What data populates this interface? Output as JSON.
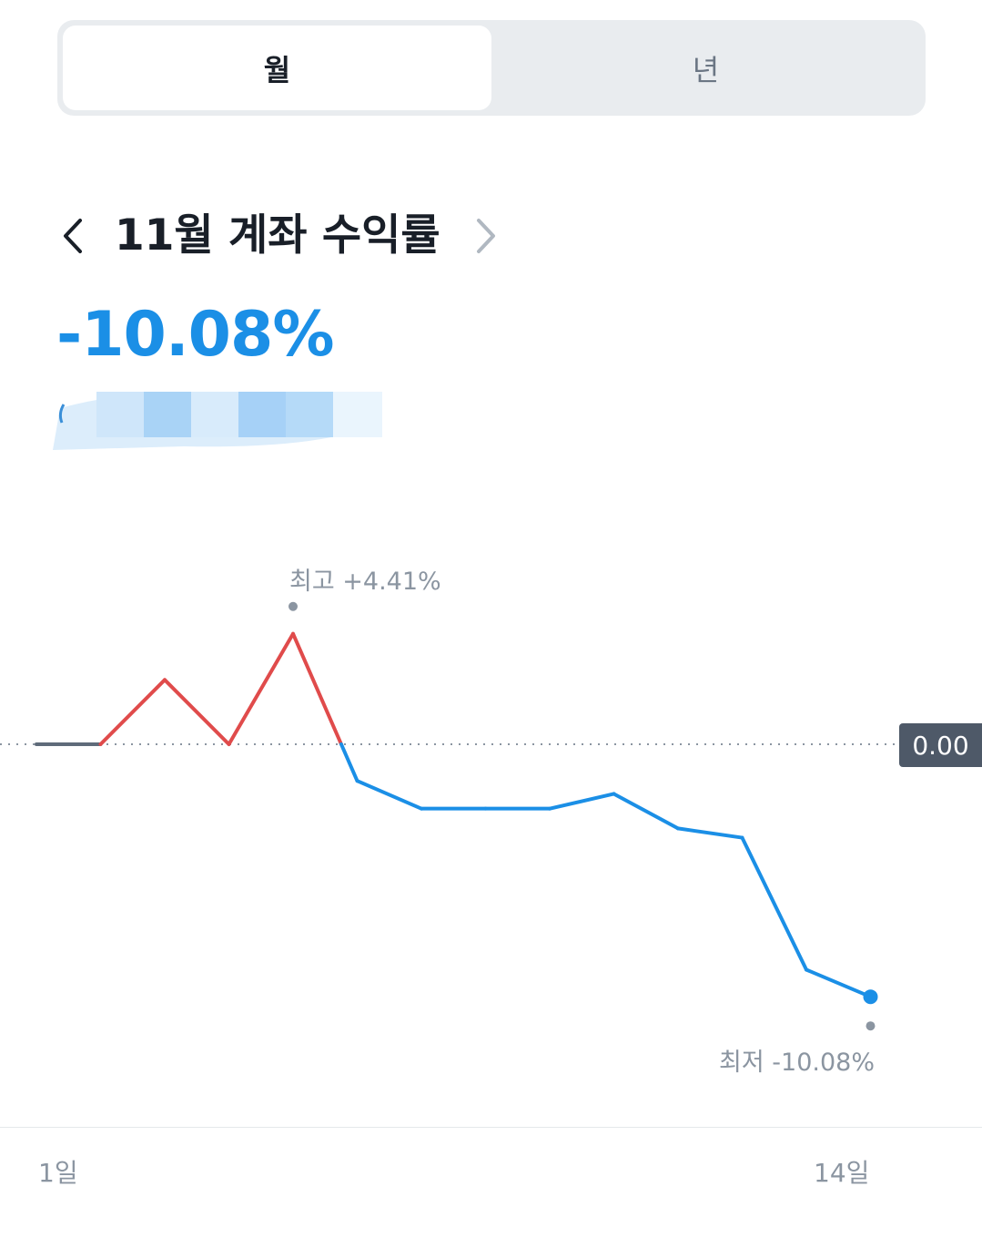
{
  "segment": {
    "options": [
      "월",
      "년"
    ],
    "selected": "월"
  },
  "header": {
    "title": "11월 계좌 수익률",
    "prev_icon": "chevron-left-icon",
    "next_icon": "chevron-right-icon"
  },
  "summary": {
    "return_rate": "-10.08%"
  },
  "chart": {
    "peak_label": "최고 +4.41%",
    "low_label": "최저 -10.08%",
    "zero_tag": "0.00",
    "x_start_label": "1일",
    "x_end_label": "14일"
  },
  "colors": {
    "positive": "#e04b4b",
    "negative": "#1b8fe6",
    "neutral": "#5f6b7a",
    "selected_tab_bg": "#ffffff",
    "segment_bg": "#e9ecef"
  },
  "chart_data": {
    "type": "line",
    "x": [
      1,
      2,
      3,
      4,
      5,
      6,
      7,
      8,
      9,
      10,
      11,
      12,
      13,
      14
    ],
    "values": [
      0.0,
      0.0,
      2.57,
      0.0,
      4.41,
      -1.46,
      -2.57,
      -2.57,
      -2.57,
      -1.98,
      -3.36,
      -3.73,
      -9.0,
      -10.08
    ],
    "title": "",
    "xlabel": "",
    "ylabel": "",
    "baseline": 0.0,
    "max": 4.41,
    "min": -10.08,
    "grid": false
  }
}
